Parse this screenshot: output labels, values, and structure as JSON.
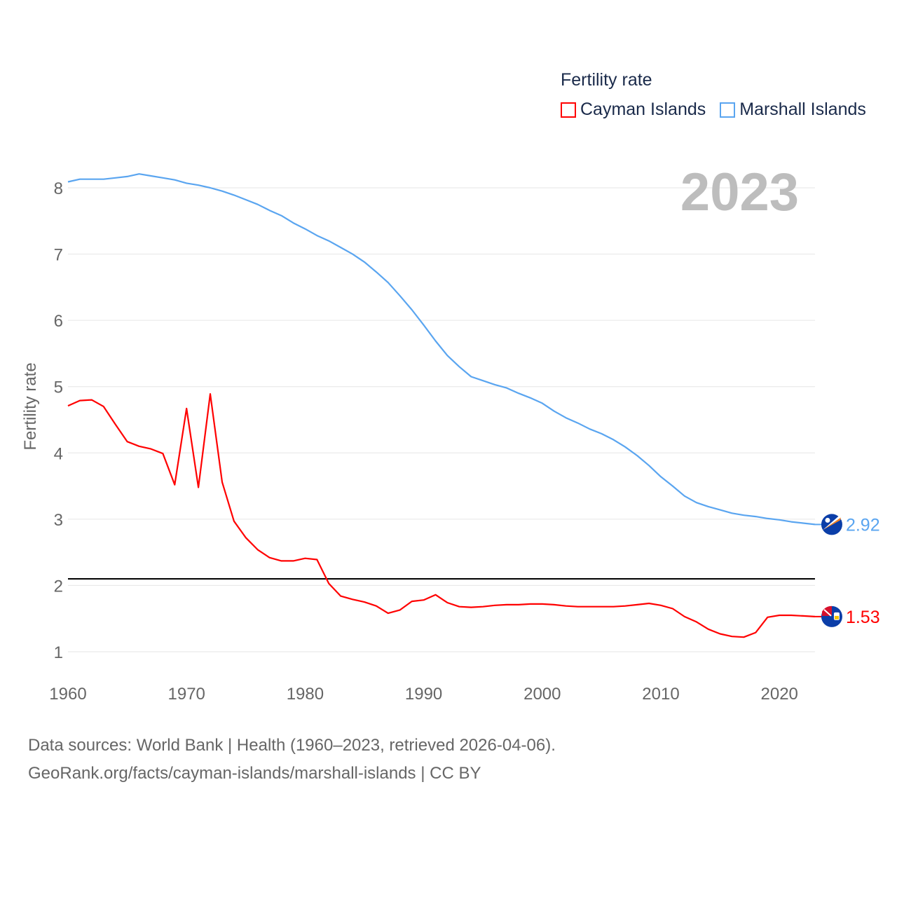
{
  "chart_data": {
    "type": "line",
    "title": "Fertility rate",
    "ylabel": "Fertility rate",
    "xlabel": "",
    "year_label": "2023",
    "xlim": [
      1960,
      2023
    ],
    "ylim": [
      0.6,
      8.3
    ],
    "x_ticks": [
      1960,
      1970,
      1980,
      1990,
      2000,
      2010,
      2020
    ],
    "y_ticks": [
      1,
      2,
      3,
      4,
      5,
      6,
      7,
      8
    ],
    "grid": true,
    "legend_position": "top-right",
    "reference_line": {
      "value": 2.1,
      "color": "#000000"
    },
    "x": [
      1960,
      1961,
      1962,
      1963,
      1964,
      1965,
      1966,
      1967,
      1968,
      1969,
      1970,
      1971,
      1972,
      1973,
      1974,
      1975,
      1976,
      1977,
      1978,
      1979,
      1980,
      1981,
      1982,
      1983,
      1984,
      1985,
      1986,
      1987,
      1988,
      1989,
      1990,
      1991,
      1992,
      1993,
      1994,
      1995,
      1996,
      1997,
      1998,
      1999,
      2000,
      2001,
      2002,
      2003,
      2004,
      2005,
      2006,
      2007,
      2008,
      2009,
      2010,
      2011,
      2012,
      2013,
      2014,
      2015,
      2016,
      2017,
      2018,
      2019,
      2020,
      2021,
      2022,
      2023
    ],
    "series": [
      {
        "name": "Cayman Islands",
        "color": "#ff0000",
        "end_label": "1.53",
        "flag": "cayman-islands-flag",
        "values": [
          4.71,
          4.79,
          4.8,
          4.7,
          4.43,
          4.17,
          4.1,
          4.06,
          3.99,
          3.52,
          4.67,
          3.48,
          4.89,
          3.56,
          2.97,
          2.72,
          2.54,
          2.42,
          2.37,
          2.37,
          2.41,
          2.39,
          2.03,
          1.84,
          1.79,
          1.75,
          1.69,
          1.58,
          1.63,
          1.76,
          1.78,
          1.86,
          1.74,
          1.68,
          1.67,
          1.68,
          1.7,
          1.71,
          1.71,
          1.72,
          1.72,
          1.71,
          1.69,
          1.68,
          1.68,
          1.68,
          1.68,
          1.69,
          1.71,
          1.73,
          1.7,
          1.65,
          1.53,
          1.45,
          1.34,
          1.27,
          1.23,
          1.22,
          1.29,
          1.52,
          1.55,
          1.55,
          1.54,
          1.53
        ]
      },
      {
        "name": "Marshall Islands",
        "color": "#5aa5f0",
        "end_label": "2.92",
        "flag": "marshall-islands-flag",
        "values": [
          8.09,
          8.13,
          8.13,
          8.13,
          8.15,
          8.17,
          8.21,
          8.18,
          8.15,
          8.12,
          8.07,
          8.04,
          8.0,
          7.95,
          7.89,
          7.82,
          7.75,
          7.66,
          7.58,
          7.47,
          7.38,
          7.28,
          7.2,
          7.1,
          7.0,
          6.88,
          6.73,
          6.57,
          6.37,
          6.16,
          5.93,
          5.69,
          5.47,
          5.3,
          5.15,
          5.09,
          5.03,
          4.98,
          4.9,
          4.83,
          4.75,
          4.63,
          4.53,
          4.45,
          4.36,
          4.29,
          4.2,
          4.09,
          3.96,
          3.81,
          3.64,
          3.5,
          3.35,
          3.25,
          3.19,
          3.14,
          3.09,
          3.06,
          3.04,
          3.01,
          2.99,
          2.96,
          2.94,
          2.92
        ]
      }
    ]
  },
  "footer": {
    "line1": "Data sources: World Bank | Health (1960–2023, retrieved 2026-04-06).",
    "line2": "GeoRank.org/facts/cayman-islands/marshall-islands | CC BY"
  }
}
